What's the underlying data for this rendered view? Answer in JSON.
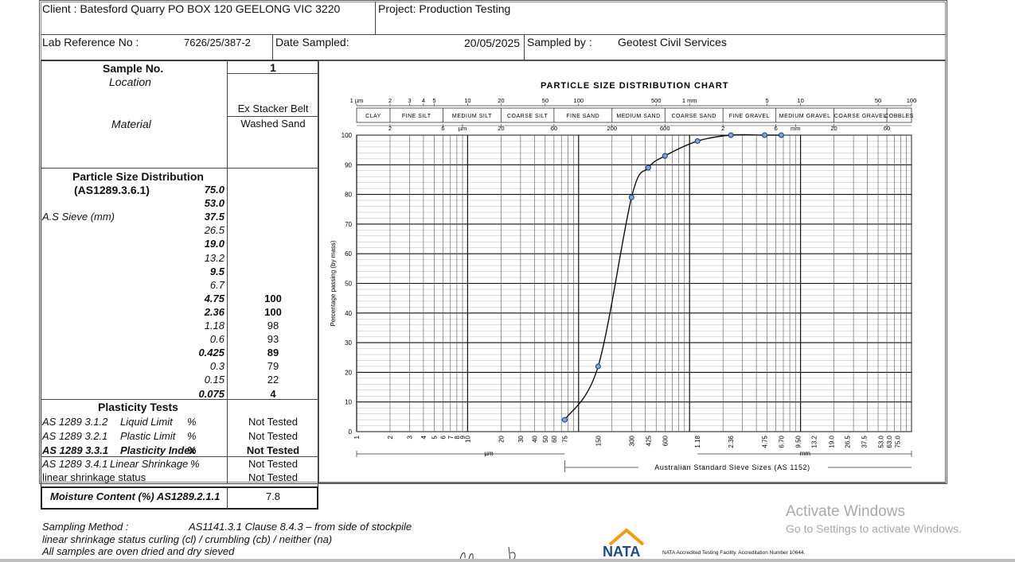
{
  "header": {
    "client": "Client : Batesford Quarry  PO BOX 120  GEELONG  VIC  3220",
    "project": "Project: Production Testing",
    "lab_ref_label": "Lab Reference No :",
    "lab_ref_value": "7626/25/387-2",
    "date_label": "Date Sampled:",
    "date_value": "20/05/2025",
    "sampled_by_label": "Sampled by :",
    "sampled_by_value": "Geotest Civil Services"
  },
  "sample": {
    "sample_no_label": "Sample No.",
    "sample_no_value": "1",
    "location_label": "Location",
    "location_value": "Ex Stacker Belt",
    "material_label": "Material",
    "material_value": "Washed Sand"
  },
  "psd": {
    "title": "Particle Size Distribution",
    "standard": "(AS1289.3.6.1)",
    "sieve_label": "A.S Sieve  (mm)",
    "rows": [
      {
        "size": "75.0",
        "bold": true,
        "value": ""
      },
      {
        "size": "53.0",
        "bold": true,
        "value": ""
      },
      {
        "size": "37.5",
        "bold": true,
        "value": ""
      },
      {
        "size": "26.5",
        "bold": false,
        "value": ""
      },
      {
        "size": "19.0",
        "bold": true,
        "value": ""
      },
      {
        "size": "13.2",
        "bold": false,
        "value": ""
      },
      {
        "size": "9.5",
        "bold": true,
        "value": ""
      },
      {
        "size": "6.7",
        "bold": false,
        "value": ""
      },
      {
        "size": "4.75",
        "bold": true,
        "value": "100"
      },
      {
        "size": "2.36",
        "bold": true,
        "value": "100"
      },
      {
        "size": "1.18",
        "bold": false,
        "value": "98"
      },
      {
        "size": "0.6",
        "bold": false,
        "value": "93"
      },
      {
        "size": "0.425",
        "bold": true,
        "value": "89"
      },
      {
        "size": "0.3",
        "bold": false,
        "value": "79"
      },
      {
        "size": "0.15",
        "bold": false,
        "value": "22"
      },
      {
        "size": "0.075",
        "bold": true,
        "value": "4"
      }
    ]
  },
  "plasticity": {
    "title": "Plasticity Tests",
    "rows": [
      {
        "std": "AS 1289 3.1.2",
        "test": "Liquid Limit",
        "unit": "%",
        "value": "Not Tested",
        "bold": false
      },
      {
        "std": "AS 1289 3.2.1",
        "test": "Plastic Limit",
        "unit": "%",
        "value": "Not Tested",
        "bold": false
      },
      {
        "std": "AS 1289 3.3.1",
        "test": "Plasticity Index",
        "unit": "%",
        "value": "Not Tested",
        "bold": true
      },
      {
        "std": "AS 1289 3.4.1",
        "test": "Linear Shrinkage",
        "unit": "%",
        "value": "Not Tested",
        "bold": false
      }
    ],
    "ls_status_label": "linear shrinkage status",
    "ls_status_value": "Not Tested"
  },
  "moisture": {
    "label": "Moisture Content (%) AS1289.2.1.1",
    "value": "7.8"
  },
  "footer": {
    "method_label": "Sampling Method :",
    "method_value": "AS1141.3.1 Clause 8.4.3 – from side of stockpile",
    "ls_status_line": "linear shrinkage status     curling (cl) / crumbling (cb) / neither (na)",
    "oven_line": "All samples are oven dried and  dry sieved",
    "nata_logo": "NATA",
    "nata_text": "NATA Accredited Testing Facility. Accreditation Number 10644."
  },
  "watermark": {
    "title": "Activate Windows",
    "subtitle": "Go to Settings to activate Windows."
  },
  "chart_data": {
    "type": "line",
    "title": "PARTICLE SIZE DISTRIBUTION  CHART",
    "ylabel": "Percentage passing (by mass)",
    "xlabel": "Australian Standard Sieve Sizes (AS 1152)",
    "x_scale": "log",
    "ylim": [
      0,
      100
    ],
    "yticks": [
      "0",
      "10",
      "20",
      "30",
      "40",
      "50",
      "60",
      "70",
      "80",
      "90",
      "100"
    ],
    "x": [
      0.075,
      0.15,
      0.3,
      0.425,
      0.6,
      1.18,
      2.36,
      4.75,
      6.7
    ],
    "y": [
      4,
      22,
      79,
      89,
      93,
      98,
      100,
      100,
      100
    ],
    "bottom_ticks_um": [
      "1",
      "2",
      "3",
      "4",
      "5",
      "6",
      "7",
      "8",
      "9",
      "10",
      "20",
      "30",
      "40",
      "50",
      "60",
      "75",
      "150",
      "300",
      "425",
      "600"
    ],
    "bottom_ticks_mm": [
      "1.18",
      "2.36",
      "4.75",
      "6.70",
      "9.50",
      "13.2",
      "19.0",
      "26.5",
      "37.5",
      "53.0",
      "63.0",
      "75.0"
    ],
    "bottom_um_label": "µm",
    "bottom_mm_label": "mm",
    "top_scale": [
      {
        "t": "1  µm",
        "v": 0.001
      },
      {
        "t": "2",
        "v": 0.002
      },
      {
        "t": "3",
        "v": 0.003
      },
      {
        "t": "4",
        "v": 0.004
      },
      {
        "t": "5",
        "v": 0.005
      },
      {
        "t": "10",
        "v": 0.01
      },
      {
        "t": "20",
        "v": 0.02
      },
      {
        "t": "50",
        "v": 0.05
      },
      {
        "t": "100",
        "v": 0.1
      },
      {
        "t": "500",
        "v": 0.5
      },
      {
        "t": "1  mm",
        "v": 1.0
      },
      {
        "t": "5",
        "v": 5.0
      },
      {
        "t": "10",
        "v": 10.0
      },
      {
        "t": "50",
        "v": 50.0
      },
      {
        "t": "100",
        "v": 100.0
      }
    ],
    "soil_bands": [
      {
        "name": "CLAY",
        "from": 0.001,
        "to": 0.002
      },
      {
        "name": "FINE SILT",
        "from": 0.002,
        "to": 0.006
      },
      {
        "name": "MEDIUM SILT",
        "from": 0.006,
        "to": 0.02
      },
      {
        "name": "COARSE SILT",
        "from": 0.02,
        "to": 0.06
      },
      {
        "name": "FINE SAND",
        "from": 0.06,
        "to": 0.2
      },
      {
        "name": "MEDIUM SAND",
        "from": 0.2,
        "to": 0.6
      },
      {
        "name": "COARSE SAND",
        "from": 0.6,
        "to": 2.0
      },
      {
        "name": "FINE GRAVEL",
        "from": 2.0,
        "to": 6.0
      },
      {
        "name": "MEDIUM GRAVEL",
        "from": 6.0,
        "to": 20.0
      },
      {
        "name": "COARSE GRAVEL",
        "from": 20.0,
        "to": 60.0
      },
      {
        "name": "COBBLES",
        "from": 60.0,
        "to": 100.0
      }
    ],
    "band_scale": [
      {
        "t": "2",
        "v": 0.002
      },
      {
        "t": "6",
        "v": 0.006
      },
      {
        "t": "µm",
        "v": 0.009
      },
      {
        "t": "20",
        "v": 0.02
      },
      {
        "t": "60",
        "v": 0.06
      },
      {
        "t": "200",
        "v": 0.2
      },
      {
        "t": "600",
        "v": 0.6
      },
      {
        "t": "2",
        "v": 2.0
      },
      {
        "t": "6",
        "v": 6.0
      },
      {
        "t": "mm",
        "v": 9.0
      },
      {
        "t": "20",
        "v": 20.0
      },
      {
        "t": "60",
        "v": 60.0
      }
    ],
    "grid": true
  }
}
